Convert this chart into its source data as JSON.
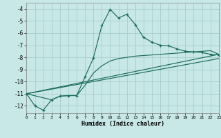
{
  "xlabel": "Humidex (Indice chaleur)",
  "background_color": "#c8e8e8",
  "grid_color": "#a8cccc",
  "line_color": "#1a6b5a",
  "xlim": [
    0,
    23
  ],
  "ylim": [
    -12.6,
    -3.5
  ],
  "yticks": [
    -4,
    -5,
    -6,
    -7,
    -8,
    -9,
    -10,
    -11,
    -12
  ],
  "xticks": [
    0,
    1,
    2,
    3,
    4,
    5,
    6,
    7,
    8,
    9,
    10,
    11,
    12,
    13,
    14,
    15,
    16,
    17,
    18,
    19,
    20,
    21,
    22,
    23
  ],
  "main_x": [
    0,
    1,
    2,
    3,
    4,
    5,
    6,
    7,
    8,
    9,
    10,
    11,
    12,
    13,
    14,
    15,
    16,
    17,
    18,
    19,
    20,
    21,
    22,
    23
  ],
  "main_y": [
    -11.0,
    -12.0,
    -12.35,
    -11.5,
    -11.2,
    -11.15,
    -11.15,
    -9.6,
    -8.05,
    -5.4,
    -4.05,
    -4.75,
    -4.45,
    -5.3,
    -6.35,
    -6.75,
    -7.0,
    -7.05,
    -7.3,
    -7.5,
    -7.55,
    -7.6,
    -7.75,
    -7.8
  ],
  "line2_x": [
    0,
    23
  ],
  "line2_y": [
    -11.0,
    -7.75
  ],
  "line3_x": [
    0,
    23
  ],
  "line3_y": [
    -11.0,
    -8.1
  ],
  "curvy_x": [
    0,
    3,
    4,
    5,
    6,
    7,
    8,
    9,
    10,
    11,
    12,
    13,
    14,
    15,
    16,
    17,
    18,
    19,
    20,
    21,
    22,
    23
  ],
  "curvy_y": [
    -11.0,
    -11.5,
    -11.2,
    -11.15,
    -11.15,
    -10.3,
    -9.3,
    -8.7,
    -8.3,
    -8.1,
    -8.0,
    -7.9,
    -7.85,
    -7.8,
    -7.75,
    -7.7,
    -7.65,
    -7.6,
    -7.55,
    -7.5,
    -7.45,
    -7.75
  ]
}
